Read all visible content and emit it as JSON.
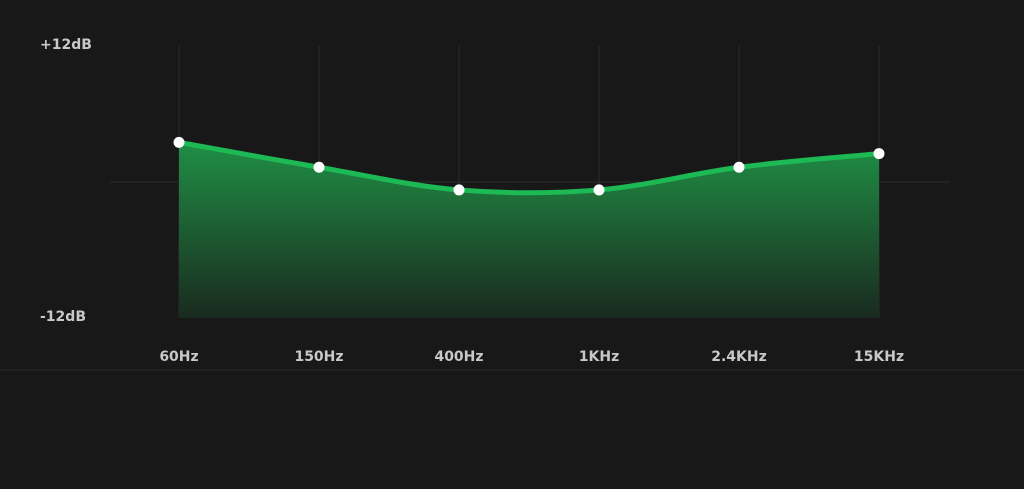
{
  "chart_data": {
    "type": "area",
    "categories": [
      "60Hz",
      "150Hz",
      "400Hz",
      "1KHz",
      "2.4KHz",
      "15KHz"
    ],
    "values": [
      3.5,
      1.3,
      -0.7,
      -0.7,
      1.3,
      2.5
    ],
    "color": "#1db954",
    "ylim": [
      -12,
      12
    ],
    "yticks": [
      {
        "value": 12,
        "label": "+12dB"
      },
      {
        "value": -12,
        "label": "-12dB"
      }
    ],
    "grid": true
  }
}
